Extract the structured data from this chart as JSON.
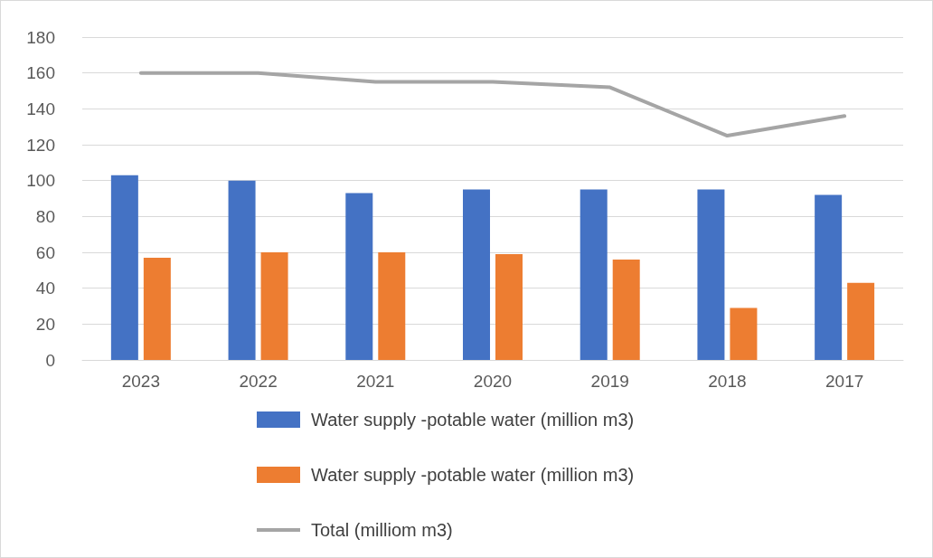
{
  "chart_data": {
    "type": "bar",
    "categories": [
      "2023",
      "2022",
      "2021",
      "2020",
      "2019",
      "2018",
      "2017"
    ],
    "series": [
      {
        "name": "Water supply -potable water (million m3)",
        "color": "#4472c4",
        "values": [
          103,
          100,
          93,
          95,
          95,
          95,
          92
        ]
      },
      {
        "name": "Water supply -potable water (million m3)",
        "color": "#ed7d31",
        "values": [
          57,
          60,
          60,
          59,
          56,
          29,
          43
        ]
      },
      {
        "name": "Total (milliom m3)",
        "type": "line",
        "color": "#a5a5a5",
        "values": [
          160,
          160,
          155,
          155,
          152,
          125,
          136
        ]
      }
    ],
    "ylim": [
      0,
      180
    ],
    "yticks": [
      0,
      20,
      40,
      60,
      80,
      100,
      120,
      140,
      160,
      180
    ],
    "grid": "y",
    "legend": "bottom",
    "marker": "none"
  }
}
